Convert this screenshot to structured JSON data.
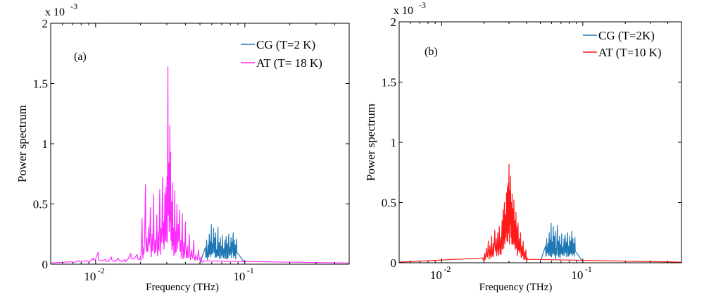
{
  "chart_data": [
    {
      "panel_label": "(a)",
      "type": "line",
      "xscale": "log",
      "xlim": [
        0.005,
        0.5
      ],
      "ylim": [
        0,
        2
      ],
      "y_multiplier": "x 10",
      "y_exponent": "-3",
      "xlabel": "Frequency (THz)",
      "ylabel": "Power spectrum",
      "yticks": [
        {
          "v": 0,
          "label": "0"
        },
        {
          "v": 0.5,
          "label": "0.5"
        },
        {
          "v": 1,
          "label": "1"
        },
        {
          "v": 1.5,
          "label": "1.5"
        },
        {
          "v": 2,
          "label": "2"
        }
      ],
      "xticks": [
        {
          "v": 0.01,
          "label": "10",
          "exp": "-2"
        },
        {
          "v": 0.1,
          "label": "10",
          "exp": "-1"
        }
      ],
      "legend": {
        "position": "top-right"
      },
      "series": [
        {
          "name": "CG (T=2 K)",
          "color": "#1f77b4",
          "band": [
            0.05,
            0.1
          ],
          "baseline": 0.01,
          "x": [
            0.0545,
            0.0555,
            0.0568,
            0.0578,
            0.0588,
            0.0596,
            0.0606,
            0.0618,
            0.0628,
            0.0638,
            0.0648,
            0.066,
            0.0672,
            0.0684,
            0.0696,
            0.0708,
            0.0722,
            0.0736,
            0.075,
            0.0765,
            0.078,
            0.0795,
            0.0808,
            0.082,
            0.0835,
            0.085,
            0.0865,
            0.088
          ],
          "y": [
            0.14,
            0.2,
            0.16,
            0.25,
            0.19,
            0.33,
            0.17,
            0.3,
            0.22,
            0.26,
            0.12,
            0.31,
            0.18,
            0.22,
            0.15,
            0.24,
            0.13,
            0.2,
            0.23,
            0.17,
            0.25,
            0.14,
            0.22,
            0.18,
            0.26,
            0.2,
            0.16,
            0.21
          ]
        },
        {
          "name": "AT (T= 18 K)",
          "color": "#ff2cff",
          "band": [
            0.005,
            0.5
          ],
          "baseline": 0.01,
          "x": [
            0.0068,
            0.0077,
            0.0086,
            0.0096,
            0.0104,
            0.0116,
            0.0128,
            0.0142,
            0.0158,
            0.0172,
            0.019,
            0.02,
            0.0205,
            0.021,
            0.0216,
            0.0221,
            0.0227,
            0.0233,
            0.0239,
            0.0245,
            0.0251,
            0.0257,
            0.0263,
            0.0269,
            0.0275,
            0.0281,
            0.0286,
            0.0291,
            0.0296,
            0.0301,
            0.0305,
            0.031,
            0.0314,
            0.0318,
            0.0323,
            0.0328,
            0.0333,
            0.0339,
            0.0345,
            0.0351,
            0.0358,
            0.0365,
            0.0373,
            0.0381,
            0.039,
            0.04,
            0.0412,
            0.0425,
            0.044,
            0.0455,
            0.047,
            0.049,
            0.051,
            0.053
          ],
          "y": [
            0.02,
            0.03,
            0.03,
            0.05,
            0.1,
            0.04,
            0.06,
            0.05,
            0.04,
            0.09,
            0.08,
            0.06,
            0.38,
            0.14,
            0.66,
            0.22,
            0.31,
            0.47,
            0.25,
            0.58,
            0.2,
            0.41,
            0.27,
            0.62,
            0.3,
            0.72,
            0.35,
            0.58,
            0.64,
            0.73,
            1.64,
            0.84,
            1.15,
            0.93,
            0.52,
            0.68,
            0.3,
            0.61,
            0.27,
            0.5,
            0.33,
            0.45,
            0.2,
            0.42,
            0.18,
            0.35,
            0.15,
            0.25,
            0.12,
            0.2,
            0.08,
            0.12,
            0.06,
            0.03
          ]
        }
      ]
    },
    {
      "panel_label": "(b)",
      "type": "line",
      "xscale": "log",
      "xlim": [
        0.005,
        0.5
      ],
      "ylim": [
        0,
        2
      ],
      "y_multiplier": "x 10",
      "y_exponent": "-3",
      "xlabel": "Frequency (THz)",
      "ylabel": "Power spectrum",
      "yticks": [
        {
          "v": 0,
          "label": "0"
        },
        {
          "v": 0.5,
          "label": "0.5"
        },
        {
          "v": 1,
          "label": "1"
        },
        {
          "v": 1.5,
          "label": "1.5"
        },
        {
          "v": 2,
          "label": "2"
        }
      ],
      "xticks": [
        {
          "v": 0.01,
          "label": "10",
          "exp": "-2"
        },
        {
          "v": 0.1,
          "label": "10",
          "exp": "-1"
        }
      ],
      "legend": {
        "position": "top-right"
      },
      "series": [
        {
          "name": "CG (T=2K)",
          "color": "#1f77b4",
          "band": [
            0.05,
            0.1
          ],
          "baseline": 0.01,
          "x": [
            0.0545,
            0.0555,
            0.0568,
            0.0578,
            0.0588,
            0.0596,
            0.0606,
            0.0618,
            0.0628,
            0.0638,
            0.0648,
            0.066,
            0.0672,
            0.0684,
            0.0696,
            0.0708,
            0.0722,
            0.0736,
            0.075,
            0.0765,
            0.078,
            0.0795,
            0.0808,
            0.082,
            0.0835,
            0.085,
            0.0865,
            0.088
          ],
          "y": [
            0.14,
            0.2,
            0.16,
            0.25,
            0.19,
            0.33,
            0.17,
            0.3,
            0.22,
            0.26,
            0.12,
            0.31,
            0.18,
            0.22,
            0.15,
            0.24,
            0.13,
            0.2,
            0.23,
            0.17,
            0.25,
            0.14,
            0.22,
            0.18,
            0.26,
            0.2,
            0.16,
            0.21
          ]
        },
        {
          "name": "AT (T=10 K)",
          "color": "#ff1a1a",
          "band": [
            0.005,
            0.5
          ],
          "baseline": 0.005,
          "x": [
            0.0196,
            0.0202,
            0.0208,
            0.0214,
            0.022,
            0.0226,
            0.0232,
            0.0238,
            0.0244,
            0.025,
            0.0256,
            0.0262,
            0.0268,
            0.0273,
            0.0278,
            0.0283,
            0.0288,
            0.0292,
            0.0296,
            0.03,
            0.0304,
            0.0308,
            0.0312,
            0.0316,
            0.032,
            0.0325,
            0.033,
            0.0336,
            0.0342,
            0.0348,
            0.0355,
            0.0362,
            0.037,
            0.0378,
            0.0386,
            0.0395,
            0.0405
          ],
          "y": [
            0.04,
            0.08,
            0.12,
            0.18,
            0.14,
            0.22,
            0.16,
            0.27,
            0.2,
            0.25,
            0.3,
            0.21,
            0.35,
            0.44,
            0.5,
            0.4,
            0.58,
            0.63,
            0.66,
            0.82,
            0.6,
            0.72,
            0.5,
            0.57,
            0.45,
            0.52,
            0.35,
            0.42,
            0.3,
            0.33,
            0.2,
            0.25,
            0.14,
            0.18,
            0.09,
            0.11,
            0.04
          ]
        }
      ]
    }
  ]
}
